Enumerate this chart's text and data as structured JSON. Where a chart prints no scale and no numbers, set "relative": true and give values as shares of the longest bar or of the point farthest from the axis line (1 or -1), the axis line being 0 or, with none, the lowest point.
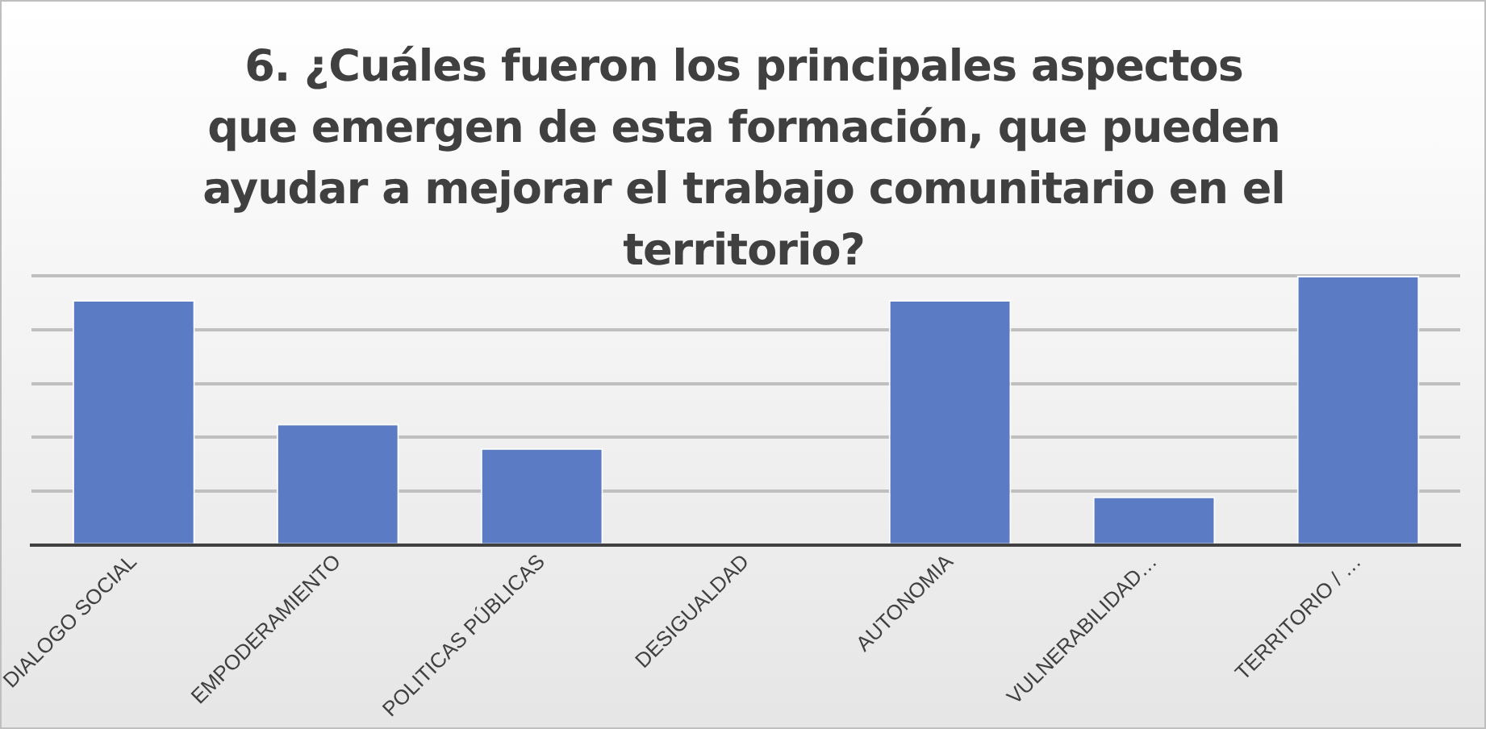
{
  "chart_data": {
    "type": "bar",
    "title": "6. ¿Cuáles fueron los principales aspectos que emergen de esta formación, que pueden ayudar a mejorar el trabajo comunitario en el territorio?",
    "categories": [
      "DIALOGO SOCIAL",
      "EMPODERAMIENTO",
      "POLITICAS PÚBLICAS",
      "DESIGUALDAD",
      "AUTONOMIA",
      "VULNERABILIDAD…",
      "TERRITORIO / …"
    ],
    "values": [
      0.91,
      0.45,
      0.36,
      0,
      0.91,
      0.18,
      1
    ],
    "color": "#5b7bc4",
    "relative": true,
    "grid": "y"
  }
}
